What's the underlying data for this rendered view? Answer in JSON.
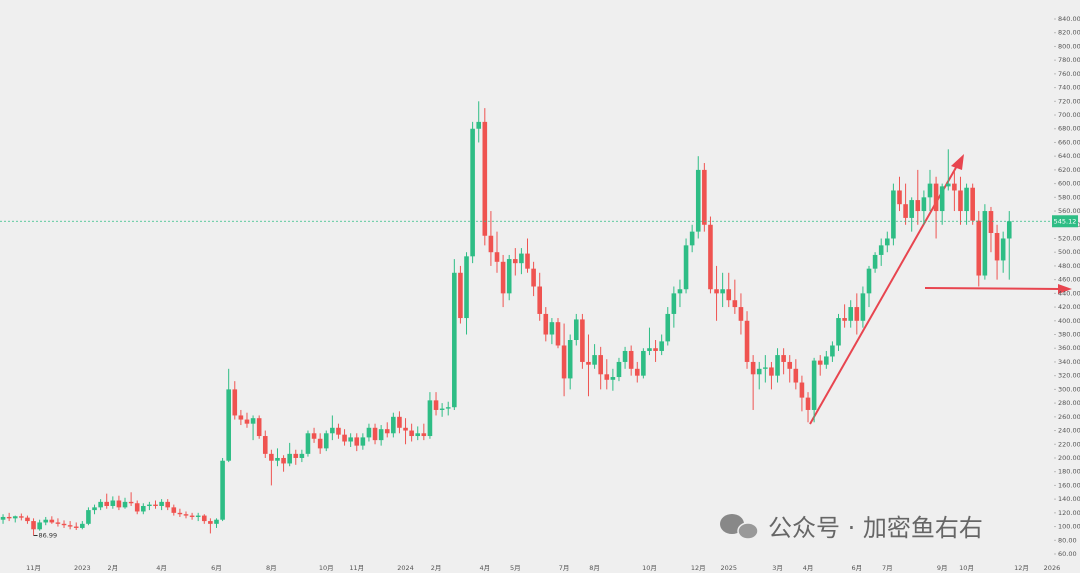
{
  "chart_data": {
    "type": "candlestick",
    "up_color": "#2ebd85",
    "down_color": "#ef5350",
    "price_line": true,
    "grid": false,
    "watermark": "公众号 · 加密鱼右右",
    "ylim": [
      60,
      840
    ],
    "yticks": [
      {
        "value": 60,
        "label": "60.00"
      },
      {
        "value": 80,
        "label": "80.00"
      },
      {
        "value": 100,
        "label": "100.00"
      },
      {
        "value": 120,
        "label": "120.00"
      },
      {
        "value": 140,
        "label": "140.00"
      },
      {
        "value": 160,
        "label": "160.00"
      },
      {
        "value": 180,
        "label": "180.00"
      },
      {
        "value": 200,
        "label": "200.00"
      },
      {
        "value": 220,
        "label": "220.00"
      },
      {
        "value": 240,
        "label": "240.00"
      },
      {
        "value": 260,
        "label": "260.00"
      },
      {
        "value": 280,
        "label": "280.00"
      },
      {
        "value": 300,
        "label": "300.00"
      },
      {
        "value": 320,
        "label": "320.00"
      },
      {
        "value": 340,
        "label": "340.00"
      },
      {
        "value": 360,
        "label": "360.00"
      },
      {
        "value": 380,
        "label": "380.00"
      },
      {
        "value": 400,
        "label": "400.00"
      },
      {
        "value": 420,
        "label": "420.00"
      },
      {
        "value": 440,
        "label": "440.00"
      },
      {
        "value": 460,
        "label": "460.00"
      },
      {
        "value": 480,
        "label": "480.00"
      },
      {
        "value": 500,
        "label": "500.00"
      },
      {
        "value": 520,
        "label": "520.00"
      },
      {
        "value": 540,
        "label": "540.00"
      },
      {
        "value": 560,
        "label": "560.00"
      },
      {
        "value": 580,
        "label": "580.00"
      },
      {
        "value": 600,
        "label": "600.00"
      },
      {
        "value": 620,
        "label": "620.00"
      },
      {
        "value": 640,
        "label": "640.00"
      },
      {
        "value": 660,
        "label": "660.00"
      },
      {
        "value": 680,
        "label": "680.00"
      },
      {
        "value": 700,
        "label": "700.00"
      },
      {
        "value": 720,
        "label": "720.00"
      },
      {
        "value": 740,
        "label": "740.00"
      },
      {
        "value": 760,
        "label": "760.00"
      },
      {
        "value": 780,
        "label": "780.00"
      },
      {
        "value": 800,
        "label": "800.00"
      },
      {
        "value": 820,
        "label": "820.00"
      },
      {
        "value": 840,
        "label": "840.00"
      }
    ],
    "categories": [
      null,
      null,
      null,
      null,
      null,
      "11月",
      null,
      null,
      null,
      null,
      null,
      null,
      null,
      "2023",
      null,
      null,
      null,
      null,
      "2月",
      null,
      null,
      null,
      null,
      null,
      null,
      null,
      "4月",
      null,
      null,
      null,
      null,
      null,
      null,
      null,
      null,
      "6月",
      null,
      null,
      null,
      null,
      null,
      null,
      null,
      null,
      "8月",
      null,
      null,
      null,
      null,
      null,
      null,
      null,
      null,
      "10月",
      null,
      null,
      null,
      null,
      "11月",
      null,
      null,
      null,
      null,
      null,
      null,
      null,
      "2024",
      null,
      null,
      null,
      null,
      "2月",
      null,
      null,
      null,
      null,
      null,
      null,
      null,
      "4月",
      null,
      null,
      null,
      null,
      "5月",
      null,
      null,
      null,
      null,
      null,
      null,
      null,
      "7月",
      null,
      null,
      null,
      null,
      "8月",
      null,
      null,
      null,
      null,
      null,
      null,
      null,
      null,
      "10月",
      null,
      null,
      null,
      null,
      null,
      null,
      null,
      "12月",
      null,
      null,
      null,
      null,
      "2025",
      null,
      null,
      null,
      null,
      null,
      null,
      null,
      "3月",
      null,
      null,
      null,
      null,
      "4月",
      null,
      null,
      null,
      null,
      null,
      null,
      null,
      "6月",
      null,
      null,
      null,
      null,
      "7月",
      null,
      null,
      null,
      null,
      null,
      null,
      null,
      null,
      "9月",
      null,
      null,
      null,
      "10月",
      null,
      null,
      null,
      null,
      null,
      null,
      null,
      null,
      "12月",
      null,
      null,
      null,
      null,
      "2026"
    ],
    "ohlc": [
      [
        110,
        118,
        104,
        114
      ],
      [
        114,
        120,
        108,
        112
      ],
      [
        112,
        116,
        106,
        115
      ],
      [
        115,
        119,
        109,
        113
      ],
      [
        113,
        116,
        104,
        108
      ],
      [
        108,
        112,
        86.99,
        96
      ],
      [
        96,
        110,
        94,
        106
      ],
      [
        106,
        114,
        102,
        110
      ],
      [
        110,
        115,
        104,
        106
      ],
      [
        106,
        112,
        100,
        104
      ],
      [
        104,
        109,
        98,
        102
      ],
      [
        102,
        108,
        96,
        100
      ],
      [
        100,
        106,
        95,
        98
      ],
      [
        98,
        108,
        96,
        104
      ],
      [
        104,
        128,
        102,
        124
      ],
      [
        124,
        132,
        118,
        128
      ],
      [
        128,
        140,
        124,
        136
      ],
      [
        136,
        148,
        126,
        130
      ],
      [
        130,
        144,
        126,
        138
      ],
      [
        138,
        145,
        124,
        128
      ],
      [
        128,
        142,
        126,
        136
      ],
      [
        136,
        150,
        130,
        134
      ],
      [
        134,
        138,
        118,
        122
      ],
      [
        122,
        134,
        118,
        130
      ],
      [
        130,
        136,
        124,
        132
      ],
      [
        132,
        138,
        126,
        130
      ],
      [
        130,
        140,
        124,
        136
      ],
      [
        136,
        140,
        124,
        128
      ],
      [
        128,
        132,
        116,
        120
      ],
      [
        120,
        126,
        114,
        118
      ],
      [
        118,
        122,
        112,
        116
      ],
      [
        116,
        120,
        110,
        114
      ],
      [
        114,
        120,
        108,
        116
      ],
      [
        116,
        118,
        104,
        108
      ],
      [
        108,
        112,
        90,
        104
      ],
      [
        104,
        112,
        98,
        110
      ],
      [
        110,
        200,
        108,
        196
      ],
      [
        196,
        330,
        194,
        300
      ],
      [
        300,
        312,
        256,
        262
      ],
      [
        262,
        270,
        248,
        256
      ],
      [
        256,
        266,
        244,
        250
      ],
      [
        250,
        262,
        226,
        258
      ],
      [
        258,
        262,
        228,
        232
      ],
      [
        232,
        240,
        200,
        206
      ],
      [
        206,
        212,
        160,
        196
      ],
      [
        196,
        214,
        188,
        200
      ],
      [
        200,
        204,
        180,
        192
      ],
      [
        192,
        222,
        188,
        206
      ],
      [
        206,
        212,
        190,
        200
      ],
      [
        200,
        212,
        194,
        206
      ],
      [
        206,
        240,
        202,
        236
      ],
      [
        236,
        244,
        222,
        228
      ],
      [
        228,
        236,
        206,
        214
      ],
      [
        214,
        240,
        210,
        236
      ],
      [
        236,
        262,
        226,
        244
      ],
      [
        244,
        250,
        228,
        234
      ],
      [
        234,
        242,
        218,
        224
      ],
      [
        224,
        236,
        216,
        230
      ],
      [
        230,
        236,
        210,
        218
      ],
      [
        218,
        236,
        212,
        230
      ],
      [
        230,
        250,
        224,
        244
      ],
      [
        244,
        250,
        220,
        226
      ],
      [
        226,
        248,
        218,
        242
      ],
      [
        242,
        252,
        230,
        236
      ],
      [
        236,
        266,
        230,
        260
      ],
      [
        260,
        268,
        236,
        244
      ],
      [
        244,
        258,
        220,
        240
      ],
      [
        240,
        250,
        224,
        232
      ],
      [
        232,
        246,
        226,
        236
      ],
      [
        236,
        250,
        226,
        232
      ],
      [
        232,
        296,
        228,
        284
      ],
      [
        284,
        296,
        262,
        270
      ],
      [
        270,
        280,
        260,
        272
      ],
      [
        272,
        282,
        262,
        274
      ],
      [
        274,
        490,
        270,
        470
      ],
      [
        470,
        480,
        396,
        404
      ],
      [
        404,
        500,
        380,
        494
      ],
      [
        494,
        690,
        484,
        680
      ],
      [
        680,
        720,
        660,
        690
      ],
      [
        690,
        710,
        510,
        524
      ],
      [
        524,
        560,
        480,
        500
      ],
      [
        500,
        530,
        470,
        486
      ],
      [
        486,
        496,
        420,
        440
      ],
      [
        440,
        496,
        430,
        490
      ],
      [
        490,
        506,
        466,
        484
      ],
      [
        484,
        506,
        468,
        498
      ],
      [
        498,
        520,
        470,
        476
      ],
      [
        476,
        486,
        436,
        450
      ],
      [
        450,
        470,
        400,
        410
      ],
      [
        410,
        420,
        370,
        380
      ],
      [
        380,
        404,
        366,
        398
      ],
      [
        398,
        404,
        360,
        364
      ],
      [
        364,
        396,
        290,
        316
      ],
      [
        316,
        380,
        300,
        372
      ],
      [
        372,
        410,
        364,
        402
      ],
      [
        402,
        410,
        330,
        340
      ],
      [
        340,
        380,
        290,
        336
      ],
      [
        336,
        366,
        330,
        350
      ],
      [
        350,
        362,
        300,
        322
      ],
      [
        322,
        344,
        300,
        314
      ],
      [
        314,
        330,
        298,
        318
      ],
      [
        318,
        346,
        312,
        340
      ],
      [
        340,
        362,
        330,
        356
      ],
      [
        356,
        364,
        320,
        330
      ],
      [
        330,
        340,
        310,
        320
      ],
      [
        320,
        360,
        316,
        356
      ],
      [
        356,
        390,
        350,
        360
      ],
      [
        360,
        372,
        340,
        356
      ],
      [
        356,
        380,
        350,
        370
      ],
      [
        370,
        420,
        364,
        410
      ],
      [
        410,
        450,
        390,
        440
      ],
      [
        440,
        460,
        420,
        446
      ],
      [
        446,
        520,
        440,
        510
      ],
      [
        510,
        540,
        500,
        530
      ],
      [
        530,
        640,
        520,
        620
      ],
      [
        620,
        630,
        530,
        540
      ],
      [
        540,
        552,
        440,
        446
      ],
      [
        446,
        480,
        400,
        440
      ],
      [
        440,
        470,
        420,
        446
      ],
      [
        446,
        470,
        420,
        430
      ],
      [
        430,
        460,
        410,
        420
      ],
      [
        420,
        440,
        380,
        400
      ],
      [
        400,
        414,
        330,
        340
      ],
      [
        340,
        350,
        270,
        322
      ],
      [
        322,
        340,
        300,
        330
      ],
      [
        330,
        350,
        310,
        332
      ],
      [
        332,
        340,
        300,
        320
      ],
      [
        320,
        360,
        310,
        350
      ],
      [
        350,
        360,
        322,
        340
      ],
      [
        340,
        350,
        310,
        330
      ],
      [
        330,
        344,
        300,
        310
      ],
      [
        310,
        320,
        268,
        288
      ],
      [
        288,
        296,
        252,
        270
      ],
      [
        270,
        346,
        252,
        342
      ],
      [
        342,
        350,
        320,
        336
      ],
      [
        336,
        356,
        330,
        348
      ],
      [
        348,
        370,
        340,
        364
      ],
      [
        364,
        410,
        356,
        404
      ],
      [
        404,
        424,
        390,
        400
      ],
      [
        400,
        430,
        390,
        420
      ],
      [
        420,
        440,
        380,
        400
      ],
      [
        400,
        450,
        390,
        440
      ],
      [
        440,
        480,
        420,
        476
      ],
      [
        476,
        500,
        470,
        496
      ],
      [
        496,
        520,
        480,
        510
      ],
      [
        510,
        530,
        500,
        520
      ],
      [
        520,
        600,
        510,
        590
      ],
      [
        590,
        610,
        560,
        570
      ],
      [
        570,
        600,
        540,
        550
      ],
      [
        550,
        580,
        530,
        576
      ],
      [
        576,
        620,
        540,
        560
      ],
      [
        560,
        590,
        540,
        580
      ],
      [
        580,
        620,
        560,
        600
      ],
      [
        600,
        610,
        520,
        560
      ],
      [
        560,
        600,
        540,
        596
      ],
      [
        596,
        650,
        590,
        600
      ],
      [
        600,
        620,
        560,
        590
      ],
      [
        590,
        610,
        540,
        560
      ],
      [
        560,
        600,
        540,
        594
      ],
      [
        594,
        600,
        540,
        546
      ],
      [
        546,
        560,
        450,
        466
      ],
      [
        466,
        570,
        460,
        560
      ],
      [
        560,
        566,
        500,
        528
      ],
      [
        528,
        540,
        460,
        488
      ],
      [
        488,
        530,
        470,
        520
      ],
      [
        520,
        560,
        460,
        545.12
      ],
      null,
      null,
      null,
      null,
      null,
      null,
      null
    ]
  }
}
